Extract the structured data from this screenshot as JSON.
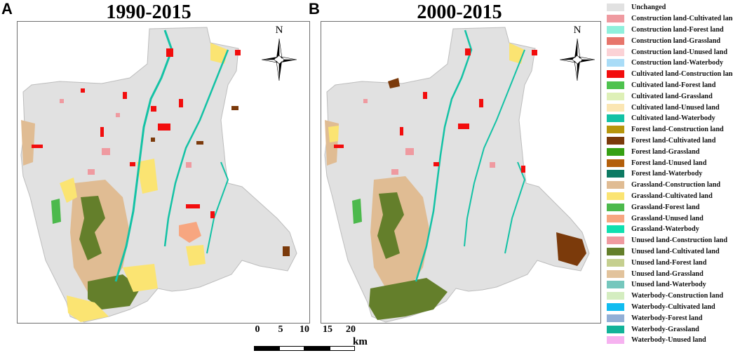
{
  "panels": [
    {
      "letter": "A",
      "title": "1990-2015",
      "north_label": "N"
    },
    {
      "letter": "B",
      "title": "2000-2015",
      "north_label": "N"
    }
  ],
  "legend": [
    {
      "label": "Unchanged",
      "color": "#e1e1e1"
    },
    {
      "label": "Construction land-Cultivated land",
      "color": "#ef9aa0"
    },
    {
      "label": "Construction land-Forest land",
      "color": "#8ff0dc"
    },
    {
      "label": "Construction land-Grassland",
      "color": "#e7756b"
    },
    {
      "label": "Construction land-Unused land",
      "color": "#fbd2d6"
    },
    {
      "label": "Construction land-Waterbody",
      "color": "#a9dcf7"
    },
    {
      "label": "Cultivated land-Construction land",
      "color": "#f20d0d"
    },
    {
      "label": "Cultivated land-Forest land",
      "color": "#4ec24e"
    },
    {
      "label": "Cultivated land-Grassland",
      "color": "#def0b7"
    },
    {
      "label": "Cultivated land-Unused land",
      "color": "#fbe6b3"
    },
    {
      "label": "Cultivated land-Waterbody",
      "color": "#13c2a5"
    },
    {
      "label": "Forest land-Construction land",
      "color": "#b7960c"
    },
    {
      "label": "Forest land-Cultivated land",
      "color": "#7b3a0b"
    },
    {
      "label": "Forest land-Grassland",
      "color": "#36a013"
    },
    {
      "label": "Forest land-Unused land",
      "color": "#b35f0b"
    },
    {
      "label": "Forest land-Waterbody",
      "color": "#0d7a63"
    },
    {
      "label": "Grassland-Construction land",
      "color": "#e0bc93"
    },
    {
      "label": "Grassland-Cultivated land",
      "color": "#fbe472"
    },
    {
      "label": "Grassland-Forest land",
      "color": "#4cb94c"
    },
    {
      "label": "Grassland-Unused land",
      "color": "#f7a680"
    },
    {
      "label": "Grassland-Waterbody",
      "color": "#0fe0b0"
    },
    {
      "label": "Unused land-Construction land",
      "color": "#ef9aa0"
    },
    {
      "label": "Unused land-Cultivated land",
      "color": "#647f2b"
    },
    {
      "label": "Unused land-Forest land",
      "color": "#c5cf8f"
    },
    {
      "label": "Unused land-Grassland",
      "color": "#e2c39c"
    },
    {
      "label": "Unused land-Waterbody",
      "color": "#75c7bd"
    },
    {
      "label": "Waterbody-Construction land",
      "color": "#d4edc0"
    },
    {
      "label": "Waterbody-Cultivated land",
      "color": "#11bcf0"
    },
    {
      "label": "Waterbody-Forest land",
      "color": "#92afd6"
    },
    {
      "label": "Waterbody-Grassland",
      "color": "#11b399"
    },
    {
      "label": "Waterbody-Unused land",
      "color": "#f6b2f0"
    }
  ],
  "scale": {
    "ticks": [
      "0",
      "5",
      "10",
      "15",
      "20"
    ],
    "unit": "km"
  }
}
